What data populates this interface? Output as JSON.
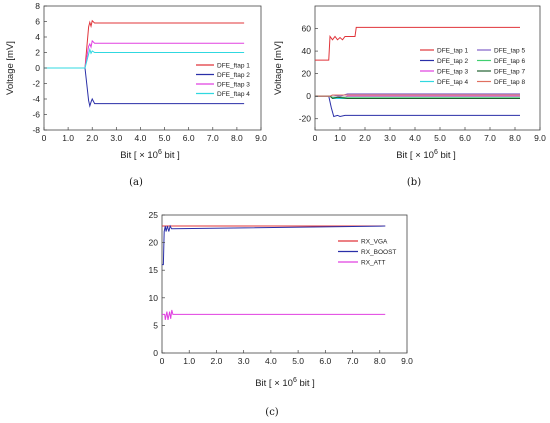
{
  "chart_data": [
    {
      "type": "line",
      "caption": "(a)",
      "ylabel": "Voltage [mV]",
      "xlabel_prefix": "Bit [ × 10",
      "xlabel_exp": "6",
      "xlabel_suffix": " bit ]",
      "xlim": [
        0,
        9
      ],
      "ylim": [
        -8,
        8
      ],
      "xticks": [
        "0",
        "1.0",
        "2.0",
        "3.0",
        "4.0",
        "5.0",
        "6.0",
        "7.0",
        "8.0",
        "9.0"
      ],
      "yticks": [
        "-8",
        "-6",
        "-4",
        "-2",
        "0",
        "2",
        "4",
        "6",
        "8"
      ],
      "legend_position": "right",
      "series": [
        {
          "name": "DFE_ftap 1",
          "color": "#e0343a",
          "points": [
            [
              0,
              0
            ],
            [
              1.7,
              0
            ],
            [
              1.85,
              5.3
            ],
            [
              1.9,
              5.9
            ],
            [
              1.95,
              5.4
            ],
            [
              2.0,
              6.1
            ],
            [
              2.1,
              5.8
            ],
            [
              8.3,
              5.8
            ]
          ]
        },
        {
          "name": "DFE_ftap 2",
          "color": "#2a2fa8",
          "points": [
            [
              0,
              0
            ],
            [
              1.7,
              0
            ],
            [
              1.85,
              -4.2
            ],
            [
              1.9,
              -4.9
            ],
            [
              1.95,
              -4.4
            ],
            [
              2.0,
              -4.0
            ],
            [
              2.1,
              -4.6
            ],
            [
              8.3,
              -4.6
            ]
          ]
        },
        {
          "name": "DFE_ftap 3",
          "color": "#e040e0",
          "points": [
            [
              0,
              0
            ],
            [
              1.7,
              0
            ],
            [
              1.85,
              2.8
            ],
            [
              1.9,
              3.1
            ],
            [
              1.95,
              2.7
            ],
            [
              2.0,
              3.5
            ],
            [
              2.1,
              3.2
            ],
            [
              8.3,
              3.2
            ]
          ]
        },
        {
          "name": "DFE_ftap 4",
          "color": "#30d8e0",
          "points": [
            [
              0,
              0
            ],
            [
              1.7,
              0
            ],
            [
              1.85,
              1.8
            ],
            [
              1.9,
              2.4
            ],
            [
              1.95,
              1.9
            ],
            [
              2.0,
              2.2
            ],
            [
              2.1,
              2.0
            ],
            [
              8.3,
              2.0
            ]
          ]
        }
      ]
    },
    {
      "type": "line",
      "caption": "(b)",
      "ylabel": "Voltage [mV]",
      "xlabel_prefix": "Bit [ × 10",
      "xlabel_exp": "6",
      "xlabel_suffix": " bit ]",
      "xlim": [
        0,
        9
      ],
      "ylim": [
        -30,
        80
      ],
      "xticks": [
        "0",
        "1.0",
        "2.0",
        "3.0",
        "4.0",
        "5.0",
        "6.0",
        "7.0",
        "8.0",
        "9.0"
      ],
      "yticks": [
        "-20",
        "0",
        "20",
        "40",
        "60"
      ],
      "ytick_values": [
        -20,
        0,
        20,
        40,
        60
      ],
      "legend_position": "right",
      "legend_columns": 2,
      "series": [
        {
          "name": "DFE_tap 1",
          "color": "#e0343a",
          "points": [
            [
              0,
              32
            ],
            [
              0.55,
              32
            ],
            [
              0.6,
              53
            ],
            [
              0.7,
              50
            ],
            [
              0.8,
              53
            ],
            [
              0.9,
              50
            ],
            [
              1.0,
              52
            ],
            [
              1.1,
              50
            ],
            [
              1.2,
              53
            ],
            [
              1.6,
              53
            ],
            [
              1.65,
              61
            ],
            [
              8.2,
              61
            ]
          ]
        },
        {
          "name": "DFE_tap 2",
          "color": "#2a2fa8",
          "points": [
            [
              0,
              0
            ],
            [
              0.55,
              0
            ],
            [
              0.65,
              -10
            ],
            [
              0.75,
              -18
            ],
            [
              0.9,
              -17
            ],
            [
              1.0,
              -18
            ],
            [
              1.2,
              -17
            ],
            [
              8.2,
              -17
            ]
          ]
        },
        {
          "name": "DFE_tap 3",
          "color": "#e040e0",
          "points": [
            [
              0,
              0
            ],
            [
              0.6,
              0
            ],
            [
              0.7,
              -1
            ],
            [
              1.2,
              -1
            ],
            [
              1.3,
              0
            ],
            [
              8.2,
              0
            ]
          ]
        },
        {
          "name": "DFE_tap 4",
          "color": "#30d8e0",
          "points": [
            [
              0,
              0
            ],
            [
              0.6,
              0
            ],
            [
              0.7,
              -2
            ],
            [
              8.2,
              -2
            ]
          ]
        },
        {
          "name": "DFE_tap 5",
          "color": "#8060c8",
          "points": [
            [
              0,
              0
            ],
            [
              0.6,
              0
            ],
            [
              0.7,
              1
            ],
            [
              1.0,
              0
            ],
            [
              1.3,
              2
            ],
            [
              8.2,
              2
            ]
          ]
        },
        {
          "name": "DFE_tap 6",
          "color": "#40d070",
          "points": [
            [
              0,
              0
            ],
            [
              0.6,
              0
            ],
            [
              0.7,
              -1
            ],
            [
              8.2,
              -1
            ]
          ]
        },
        {
          "name": "DFE_tap 7",
          "color": "#206030",
          "points": [
            [
              0,
              0
            ],
            [
              0.6,
              0
            ],
            [
              0.7,
              -2
            ],
            [
              0.9,
              -1
            ],
            [
              1.3,
              -2
            ],
            [
              8.2,
              -2
            ]
          ]
        },
        {
          "name": "DFE_tap 8",
          "color": "#e07060",
          "points": [
            [
              0,
              0
            ],
            [
              0.6,
              0
            ],
            [
              0.7,
              1
            ],
            [
              1.3,
              1
            ],
            [
              8.2,
              1
            ]
          ]
        }
      ]
    },
    {
      "type": "line",
      "caption": "(c)",
      "ylabel": "",
      "xlabel_prefix": "Bit [ × 10",
      "xlabel_exp": "6",
      "xlabel_suffix": " bit ]",
      "xlim": [
        0,
        9
      ],
      "ylim": [
        0,
        25
      ],
      "xticks": [
        "0",
        "1.0",
        "2.0",
        "3.0",
        "4.0",
        "5.0",
        "6.0",
        "7.0",
        "8.0",
        "9.0"
      ],
      "yticks": [
        "0",
        "5",
        "10",
        "15",
        "20",
        "25"
      ],
      "legend_position": "right",
      "series": [
        {
          "name": "RX_VGA",
          "color": "#e0343a",
          "points": [
            [
              0,
              23
            ],
            [
              0.02,
              23
            ],
            [
              8.2,
              23
            ]
          ]
        },
        {
          "name": "RX_BOOST",
          "color": "#2a2fa8",
          "points": [
            [
              0,
              16
            ],
            [
              0.05,
              16
            ],
            [
              0.08,
              22
            ],
            [
              0.12,
              23
            ],
            [
              0.15,
              22
            ],
            [
              0.2,
              23
            ],
            [
              0.25,
              22
            ],
            [
              0.3,
              23
            ],
            [
              0.35,
              22.5
            ],
            [
              8.2,
              23
            ]
          ]
        },
        {
          "name": "RX_ATT",
          "color": "#e040e0",
          "points": [
            [
              0,
              7
            ],
            [
              0.1,
              7
            ],
            [
              0.12,
              6
            ],
            [
              0.18,
              7.5
            ],
            [
              0.22,
              6
            ],
            [
              0.28,
              7.5
            ],
            [
              0.32,
              6.2
            ],
            [
              0.36,
              7.8
            ],
            [
              0.4,
              7
            ],
            [
              8.2,
              7
            ]
          ]
        }
      ]
    }
  ]
}
